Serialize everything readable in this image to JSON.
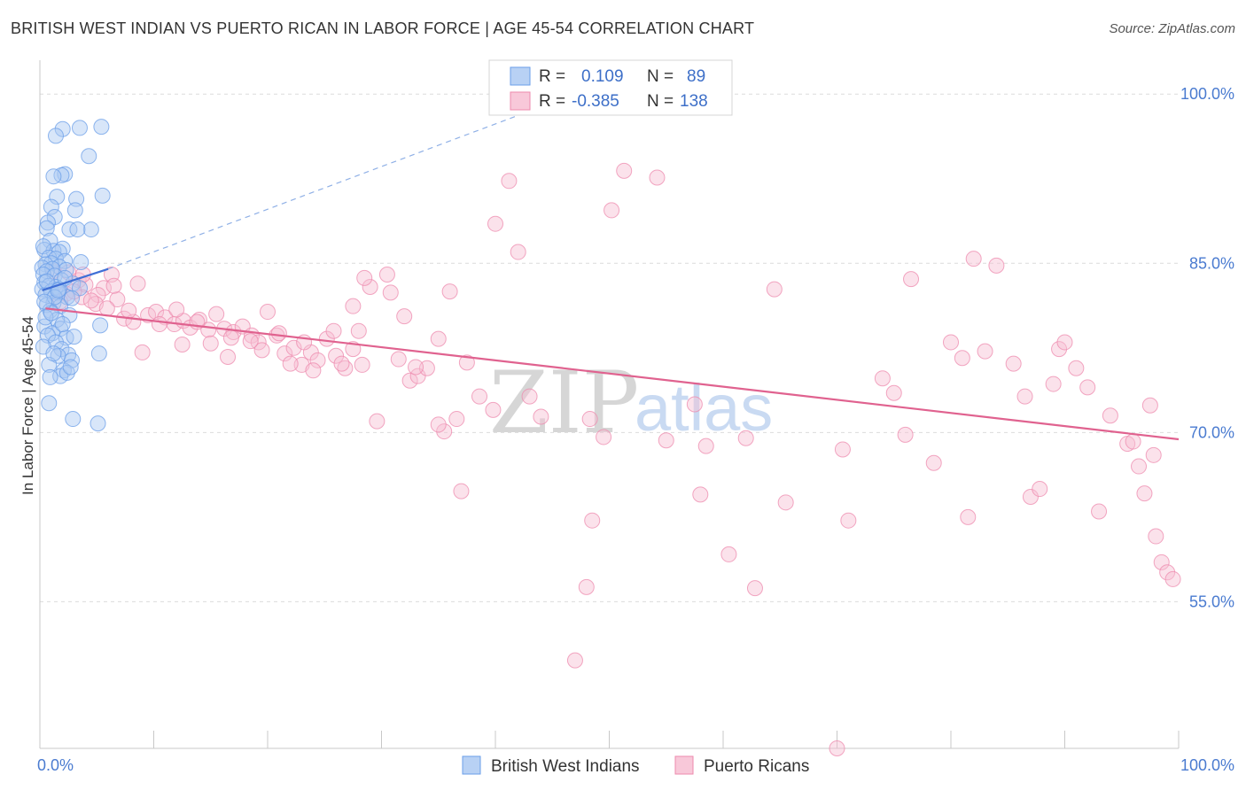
{
  "title": "BRITISH WEST INDIAN VS PUERTO RICAN IN LABOR FORCE | AGE 45-54 CORRELATION CHART",
  "source": "Source: ZipAtlas.com",
  "watermark": {
    "zip": "ZIP",
    "atlas": "atlas"
  },
  "colors": {
    "blue": "#6a9ee8",
    "blue_fill": "#a9c8f2",
    "blue_line": "#3f6fd6",
    "pink": "#ee8aad",
    "pink_fill": "#f6bfd2",
    "pink_line": "#e0628f",
    "grid": "#dcdcdc",
    "axis_label": "#4a7bd0"
  },
  "legend_box": {
    "rows": [
      {
        "r_label": "R =",
        "r_value": "0.109",
        "n_label": "N =",
        "n_value": "89",
        "color": "blue"
      },
      {
        "r_label": "R =",
        "r_value": "-0.385",
        "n_label": "N =",
        "n_value": "138",
        "color": "pink"
      }
    ]
  },
  "chart_data": {
    "type": "scatter",
    "title": "BRITISH WEST INDIAN VS PUERTO RICAN IN LABOR FORCE | AGE 45-54 CORRELATION CHART",
    "xlabel": "",
    "ylabel": "In Labor Force | Age 45-54",
    "xlim": [
      0,
      100
    ],
    "ylim": [
      42,
      103
    ],
    "x_tick_labels": [
      {
        "value": 0,
        "label": "0.0%"
      },
      {
        "value": 100,
        "label": "100.0%"
      }
    ],
    "y_tick_labels": [
      {
        "value": 55,
        "label": "55.0%"
      },
      {
        "value": 70,
        "label": "70.0%"
      },
      {
        "value": 85,
        "label": "85.0%"
      },
      {
        "value": 100,
        "label": "100.0%"
      }
    ],
    "y_gridlines": [
      55,
      70,
      85,
      100
    ],
    "x_minor_ticks": [
      0,
      10,
      20,
      30,
      40,
      50,
      60,
      70,
      80,
      90,
      100
    ],
    "legend": [
      "British West Indians",
      "Puerto Ricans"
    ],
    "series": [
      {
        "name": "British West Indians",
        "color": "blue",
        "r": 0.109,
        "n": 89,
        "trend": {
          "x": [
            0.2,
            6
          ],
          "y": [
            82.6,
            84.5
          ],
          "extended": {
            "x": [
              6,
              47
            ],
            "y": [
              84.5,
              100
            ]
          }
        },
        "points": [
          [
            2.0,
            96.9
          ],
          [
            3.5,
            97.0
          ],
          [
            5.4,
            97.1
          ],
          [
            1.4,
            96.3
          ],
          [
            4.3,
            94.5
          ],
          [
            2.2,
            92.9
          ],
          [
            1.9,
            92.8
          ],
          [
            1.2,
            92.7
          ],
          [
            5.5,
            91.0
          ],
          [
            1.5,
            90.9
          ],
          [
            3.2,
            90.7
          ],
          [
            1.0,
            90.0
          ],
          [
            3.1,
            89.7
          ],
          [
            1.3,
            89.1
          ],
          [
            0.7,
            88.6
          ],
          [
            0.6,
            88.1
          ],
          [
            4.5,
            88.0
          ],
          [
            2.6,
            88.0
          ],
          [
            3.3,
            88.0
          ],
          [
            0.9,
            87.0
          ],
          [
            2.0,
            86.3
          ],
          [
            0.4,
            86.2
          ],
          [
            1.2,
            86.1
          ],
          [
            1.7,
            86.0
          ],
          [
            0.3,
            86.5
          ],
          [
            0.8,
            85.5
          ],
          [
            1.4,
            85.4
          ],
          [
            2.2,
            85.2
          ],
          [
            1.0,
            85.0
          ],
          [
            0.5,
            84.9
          ],
          [
            3.6,
            85.1
          ],
          [
            0.2,
            84.6
          ],
          [
            1.7,
            84.7
          ],
          [
            1.1,
            84.5
          ],
          [
            0.6,
            84.3
          ],
          [
            2.3,
            84.4
          ],
          [
            0.3,
            84.0
          ],
          [
            1.3,
            83.9
          ],
          [
            1.9,
            83.5
          ],
          [
            0.4,
            83.3
          ],
          [
            2.9,
            83.2
          ],
          [
            0.8,
            83.0
          ],
          [
            1.4,
            82.9
          ],
          [
            0.2,
            82.7
          ],
          [
            3.5,
            82.8
          ],
          [
            1.0,
            82.5
          ],
          [
            1.6,
            82.4
          ],
          [
            0.5,
            82.2
          ],
          [
            2.4,
            82.0
          ],
          [
            1.2,
            81.5
          ],
          [
            0.6,
            81.3
          ],
          [
            1.8,
            81.2
          ],
          [
            0.9,
            80.8
          ],
          [
            2.6,
            80.4
          ],
          [
            1.5,
            80.0
          ],
          [
            0.4,
            79.4
          ],
          [
            1.8,
            79.2
          ],
          [
            5.3,
            79.5
          ],
          [
            1.1,
            78.8
          ],
          [
            0.7,
            78.6
          ],
          [
            2.3,
            78.4
          ],
          [
            1.4,
            78.0
          ],
          [
            0.3,
            77.6
          ],
          [
            1.9,
            77.4
          ],
          [
            5.2,
            77.0
          ],
          [
            2.5,
            76.9
          ],
          [
            1.6,
            76.8
          ],
          [
            2.8,
            76.4
          ],
          [
            0.8,
            76.0
          ],
          [
            2.1,
            75.5
          ],
          [
            1.8,
            75.0
          ],
          [
            2.4,
            75.3
          ],
          [
            2.7,
            75.8
          ],
          [
            0.9,
            74.9
          ],
          [
            1.2,
            77.0
          ],
          [
            0.5,
            80.2
          ],
          [
            2.0,
            79.6
          ],
          [
            1.0,
            80.6
          ],
          [
            1.7,
            82.7
          ],
          [
            2.2,
            83.7
          ],
          [
            0.6,
            83.4
          ],
          [
            1.3,
            82.0
          ],
          [
            2.8,
            81.9
          ],
          [
            0.4,
            81.6
          ],
          [
            1.6,
            82.6
          ],
          [
            3.0,
            78.5
          ],
          [
            2.9,
            71.2
          ],
          [
            5.1,
            70.8
          ],
          [
            0.8,
            72.6
          ]
        ]
      },
      {
        "name": "Puerto Ricans",
        "color": "pink",
        "r": -0.385,
        "n": 138,
        "trend": {
          "x": [
            0.5,
            100
          ],
          "y": [
            81.0,
            69.4
          ]
        },
        "points": [
          [
            1.2,
            84.3
          ],
          [
            2.5,
            84.2
          ],
          [
            3.4,
            83.5
          ],
          [
            4.0,
            83.1
          ],
          [
            5.6,
            82.8
          ],
          [
            6.3,
            84.0
          ],
          [
            2.3,
            82.3
          ],
          [
            3.7,
            82.0
          ],
          [
            5.1,
            82.2
          ],
          [
            6.8,
            81.8
          ],
          [
            1.8,
            81.6
          ],
          [
            4.9,
            81.4
          ],
          [
            7.4,
            80.1
          ],
          [
            8.2,
            79.8
          ],
          [
            9.5,
            80.4
          ],
          [
            10.2,
            80.7
          ],
          [
            11.0,
            80.2
          ],
          [
            11.8,
            79.6
          ],
          [
            12.6,
            79.9
          ],
          [
            13.2,
            79.3
          ],
          [
            14.0,
            80.0
          ],
          [
            14.8,
            79.1
          ],
          [
            15.5,
            80.5
          ],
          [
            16.2,
            79.2
          ],
          [
            17.0,
            78.9
          ],
          [
            17.8,
            79.4
          ],
          [
            18.6,
            78.6
          ],
          [
            19.2,
            78.0
          ],
          [
            20.0,
            80.7
          ],
          [
            20.8,
            78.6
          ],
          [
            21.5,
            77.0
          ],
          [
            22.3,
            77.5
          ],
          [
            23.0,
            76.0
          ],
          [
            23.8,
            77.1
          ],
          [
            24.4,
            76.4
          ],
          [
            25.2,
            78.3
          ],
          [
            26.0,
            76.8
          ],
          [
            26.8,
            75.7
          ],
          [
            27.5,
            77.4
          ],
          [
            28.3,
            76.0
          ],
          [
            9.0,
            77.1
          ],
          [
            12.5,
            77.8
          ],
          [
            15.0,
            77.9
          ],
          [
            16.5,
            76.7
          ],
          [
            19.5,
            77.3
          ],
          [
            22.0,
            76.1
          ],
          [
            24.0,
            75.5
          ],
          [
            28.0,
            79.0
          ],
          [
            29.0,
            82.9
          ],
          [
            27.5,
            81.2
          ],
          [
            28.5,
            83.7
          ],
          [
            30.5,
            84.0
          ],
          [
            30.8,
            82.4
          ],
          [
            32.0,
            80.3
          ],
          [
            32.5,
            74.6
          ],
          [
            33.2,
            75.0
          ],
          [
            34.0,
            75.7
          ],
          [
            35.0,
            78.3
          ],
          [
            36.0,
            82.5
          ],
          [
            37.5,
            76.2
          ],
          [
            38.6,
            73.2
          ],
          [
            39.8,
            72.0
          ],
          [
            40.0,
            88.5
          ],
          [
            41.2,
            92.3
          ],
          [
            42.0,
            86.0
          ],
          [
            43.0,
            73.2
          ],
          [
            44.0,
            71.4
          ],
          [
            48.3,
            71.2
          ],
          [
            49.5,
            69.6
          ],
          [
            50.2,
            89.7
          ],
          [
            51.3,
            93.2
          ],
          [
            54.2,
            92.6
          ],
          [
            55.0,
            69.3
          ],
          [
            57.5,
            72.5
          ],
          [
            58.5,
            68.8
          ],
          [
            62.0,
            69.5
          ],
          [
            64.5,
            82.7
          ],
          [
            70.5,
            68.5
          ],
          [
            71.0,
            62.2
          ],
          [
            74.0,
            74.8
          ],
          [
            75.0,
            73.5
          ],
          [
            76.5,
            83.6
          ],
          [
            78.5,
            67.3
          ],
          [
            80.0,
            78.0
          ],
          [
            81.0,
            76.6
          ],
          [
            82.0,
            85.4
          ],
          [
            83.0,
            77.2
          ],
          [
            84.0,
            84.8
          ],
          [
            85.5,
            76.1
          ],
          [
            86.5,
            73.2
          ],
          [
            87.0,
            64.3
          ],
          [
            87.8,
            65.0
          ],
          [
            89.0,
            74.3
          ],
          [
            89.5,
            77.4
          ],
          [
            90.0,
            78.0
          ],
          [
            91.0,
            75.7
          ],
          [
            92.0,
            74.0
          ],
          [
            93.0,
            63.0
          ],
          [
            94.0,
            71.5
          ],
          [
            95.5,
            69.0
          ],
          [
            96.5,
            67.0
          ],
          [
            97.0,
            64.6
          ],
          [
            98.0,
            60.8
          ],
          [
            98.5,
            58.5
          ],
          [
            99.0,
            57.6
          ],
          [
            99.5,
            57.0
          ],
          [
            96.0,
            69.2
          ],
          [
            97.5,
            72.4
          ],
          [
            97.8,
            68.0
          ],
          [
            81.5,
            62.5
          ],
          [
            65.5,
            63.8
          ],
          [
            62.8,
            56.2
          ],
          [
            48.0,
            56.3
          ],
          [
            47.0,
            49.8
          ],
          [
            70.0,
            42.0
          ],
          [
            60.5,
            59.2
          ],
          [
            48.5,
            62.2
          ],
          [
            37.0,
            64.8
          ],
          [
            35.5,
            70.1
          ],
          [
            35.0,
            70.7
          ],
          [
            36.6,
            71.2
          ],
          [
            26.5,
            76.1
          ],
          [
            33.0,
            75.8
          ],
          [
            31.5,
            76.5
          ],
          [
            18.5,
            78.1
          ],
          [
            10.5,
            79.6
          ],
          [
            7.8,
            80.8
          ],
          [
            6.5,
            83.0
          ],
          [
            4.5,
            81.7
          ],
          [
            3.0,
            82.5
          ],
          [
            3.8,
            84.0
          ],
          [
            5.9,
            81.0
          ],
          [
            8.6,
            83.2
          ],
          [
            12.0,
            80.9
          ],
          [
            13.8,
            79.8
          ],
          [
            16.8,
            78.4
          ],
          [
            21.0,
            78.8
          ],
          [
            23.2,
            78.0
          ],
          [
            25.8,
            79.0
          ],
          [
            29.6,
            71.0
          ],
          [
            58.0,
            64.5
          ],
          [
            76.0,
            69.8
          ]
        ]
      }
    ]
  },
  "bottom_legend": [
    {
      "label": "British West Indians",
      "color": "blue"
    },
    {
      "label": "Puerto Ricans",
      "color": "pink"
    }
  ]
}
